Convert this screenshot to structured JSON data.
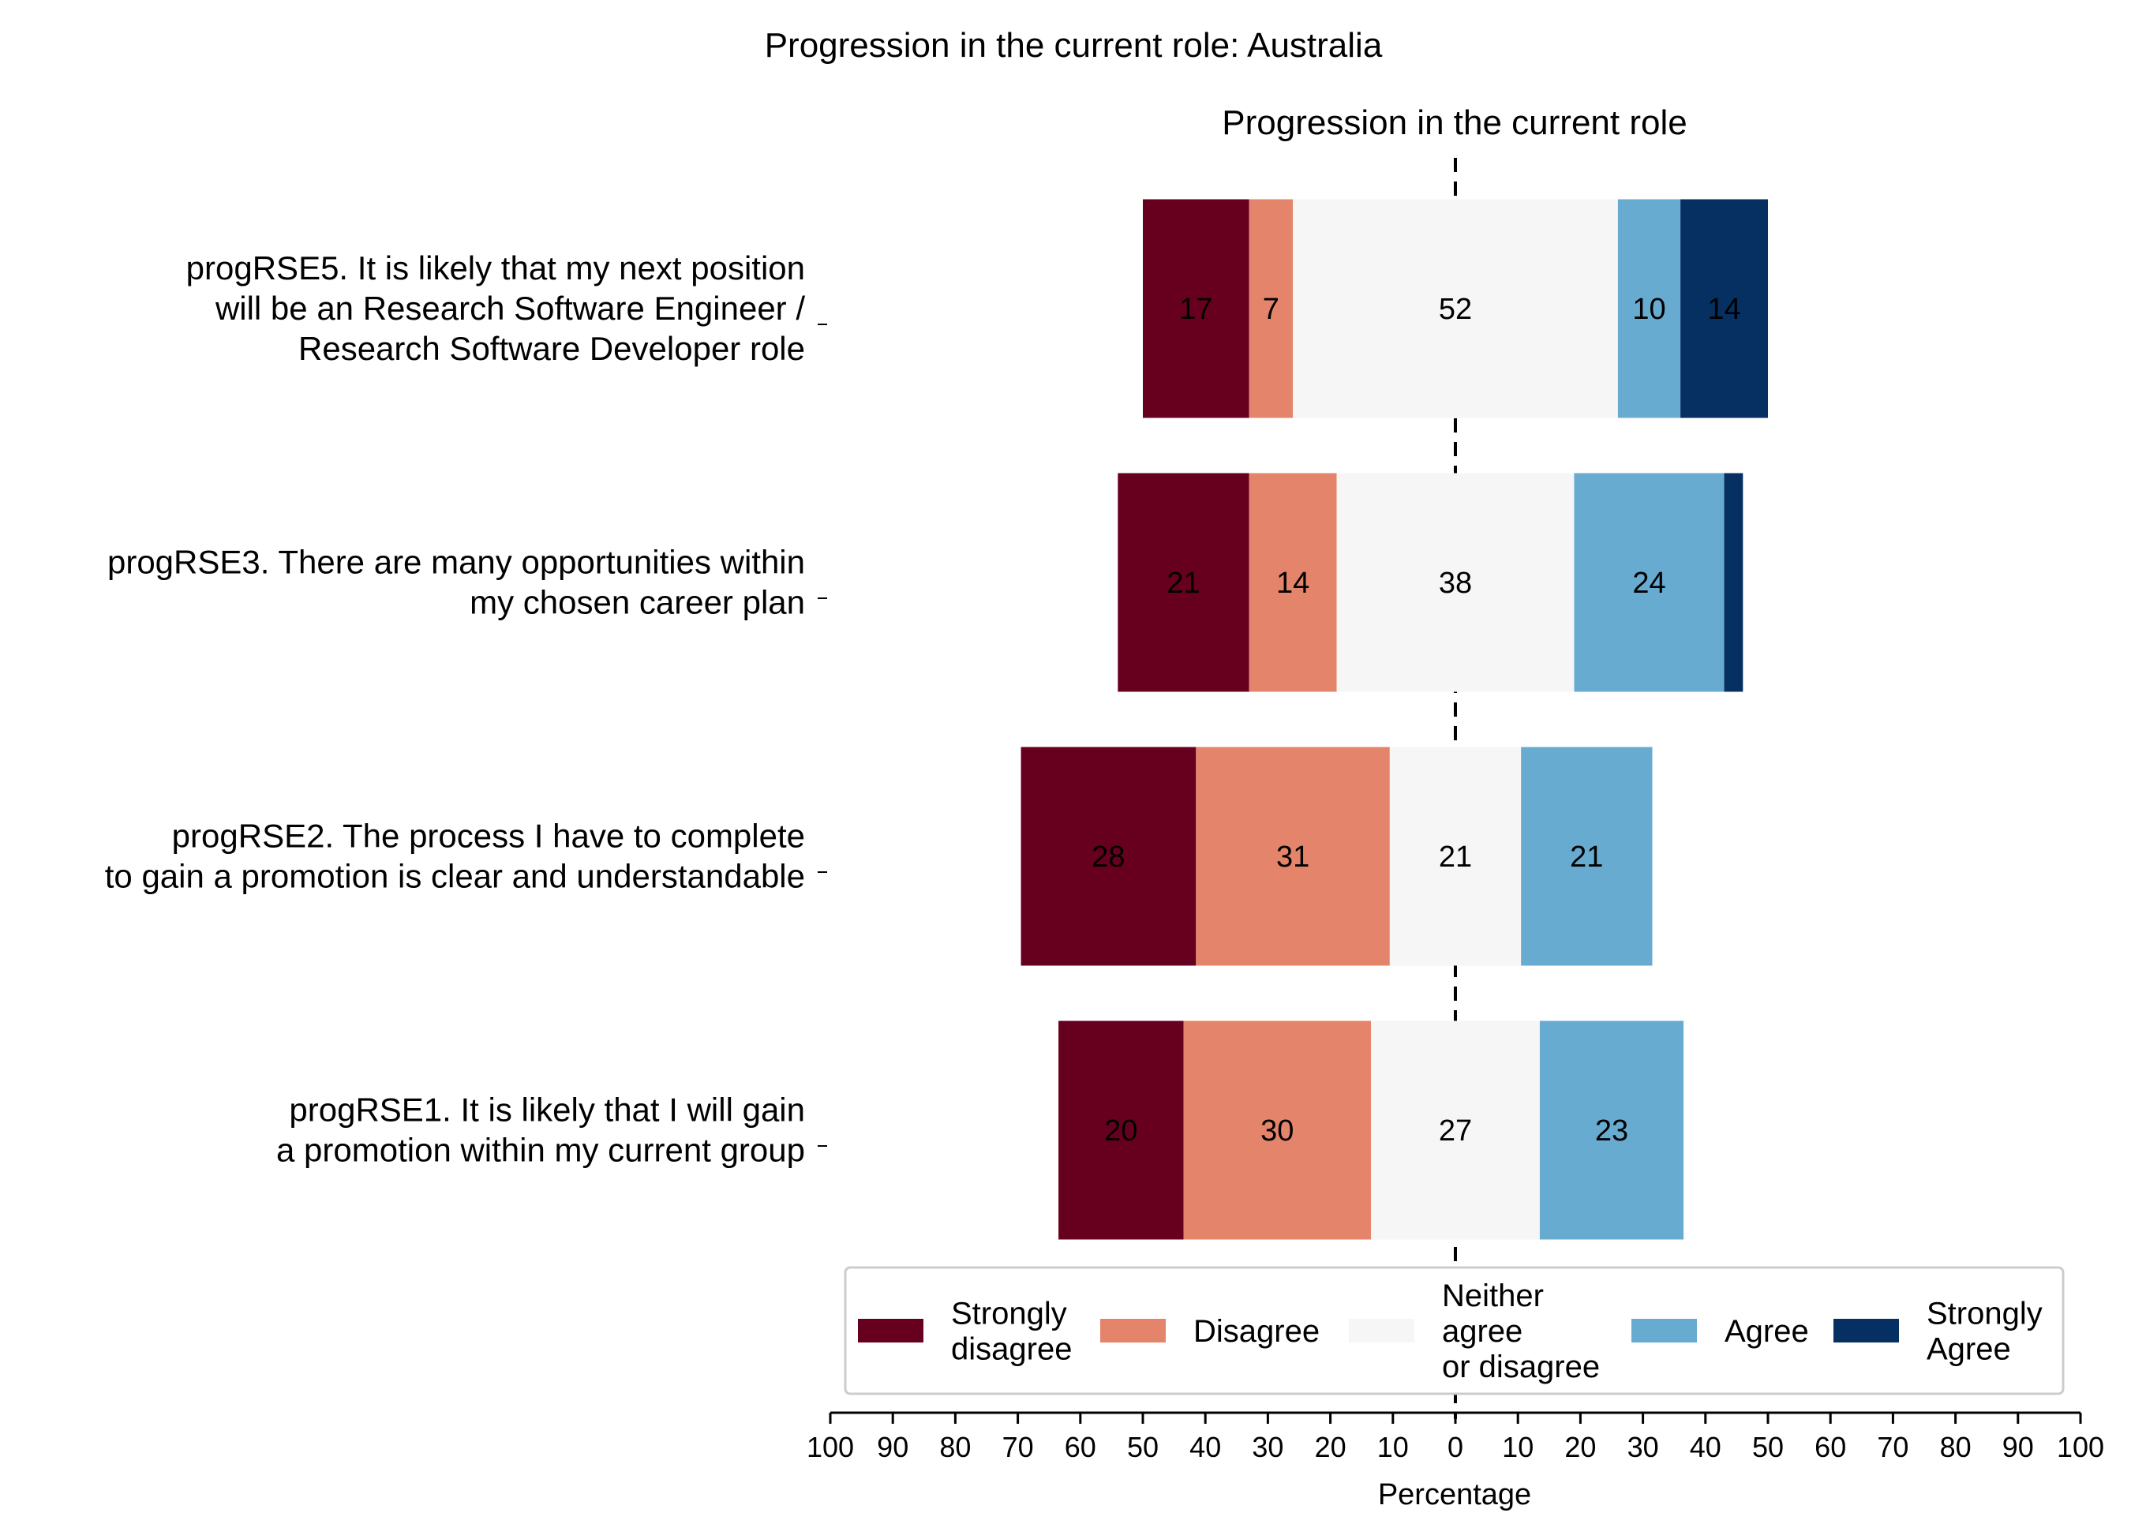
{
  "chart_data": {
    "type": "bar",
    "orientation": "horizontal",
    "layout": "diverging-stacked",
    "suptitle": "Progression in the current role: Australia",
    "title": "Progression in the current role",
    "xlabel": "Percentage",
    "xlim": [
      -100,
      100
    ],
    "x_tick_labels": [
      "100",
      "90",
      "80",
      "70",
      "60",
      "50",
      "40",
      "30",
      "20",
      "10",
      "0",
      "10",
      "20",
      "30",
      "40",
      "50",
      "60",
      "70",
      "80",
      "90",
      "100"
    ],
    "categories": [
      [
        "progRSE5. It is likely that my next position",
        "will be an Research Software Engineer /",
        "Research Software Developer role"
      ],
      [
        "progRSE3. There are many opportunities within",
        "my chosen career plan"
      ],
      [
        "progRSE2. The process I have to complete",
        "to gain a promotion is clear and understandable"
      ],
      [
        "progRSE1. It is likely that I will gain",
        "a promotion within my current group"
      ]
    ],
    "series": [
      {
        "name": "Strongly disagree",
        "legend_lines": [
          "Strongly",
          "disagree"
        ],
        "color": "#67001f",
        "values": [
          17,
          21,
          28,
          20
        ],
        "labels": [
          "17",
          "21",
          "28",
          "20"
        ]
      },
      {
        "name": "Disagree",
        "legend_lines": [
          "Disagree"
        ],
        "color": "#e4846a",
        "values": [
          7,
          14,
          31,
          30
        ],
        "labels": [
          "7",
          "14",
          "31",
          "30"
        ]
      },
      {
        "name": "Neither agree or disagree",
        "legend_lines": [
          "Neither",
          "agree",
          "or disagree"
        ],
        "color": "#f5f6f5",
        "values": [
          52,
          38,
          21,
          27
        ],
        "labels": [
          "52",
          "38",
          "21",
          "27"
        ]
      },
      {
        "name": "Agree",
        "legend_lines": [
          "Agree"
        ],
        "color": "#67abd0",
        "values": [
          10,
          24,
          21,
          23
        ],
        "labels": [
          "10",
          "24",
          "21",
          "23"
        ]
      },
      {
        "name": "Strongly Agree",
        "legend_lines": [
          "Strongly",
          "Agree"
        ],
        "color": "#053061",
        "values": [
          14,
          3,
          0,
          0
        ],
        "labels": [
          "14",
          "",
          "",
          ""
        ]
      }
    ],
    "center_line": "dashed at 0",
    "legend_position": "bottom",
    "grid": false
  }
}
